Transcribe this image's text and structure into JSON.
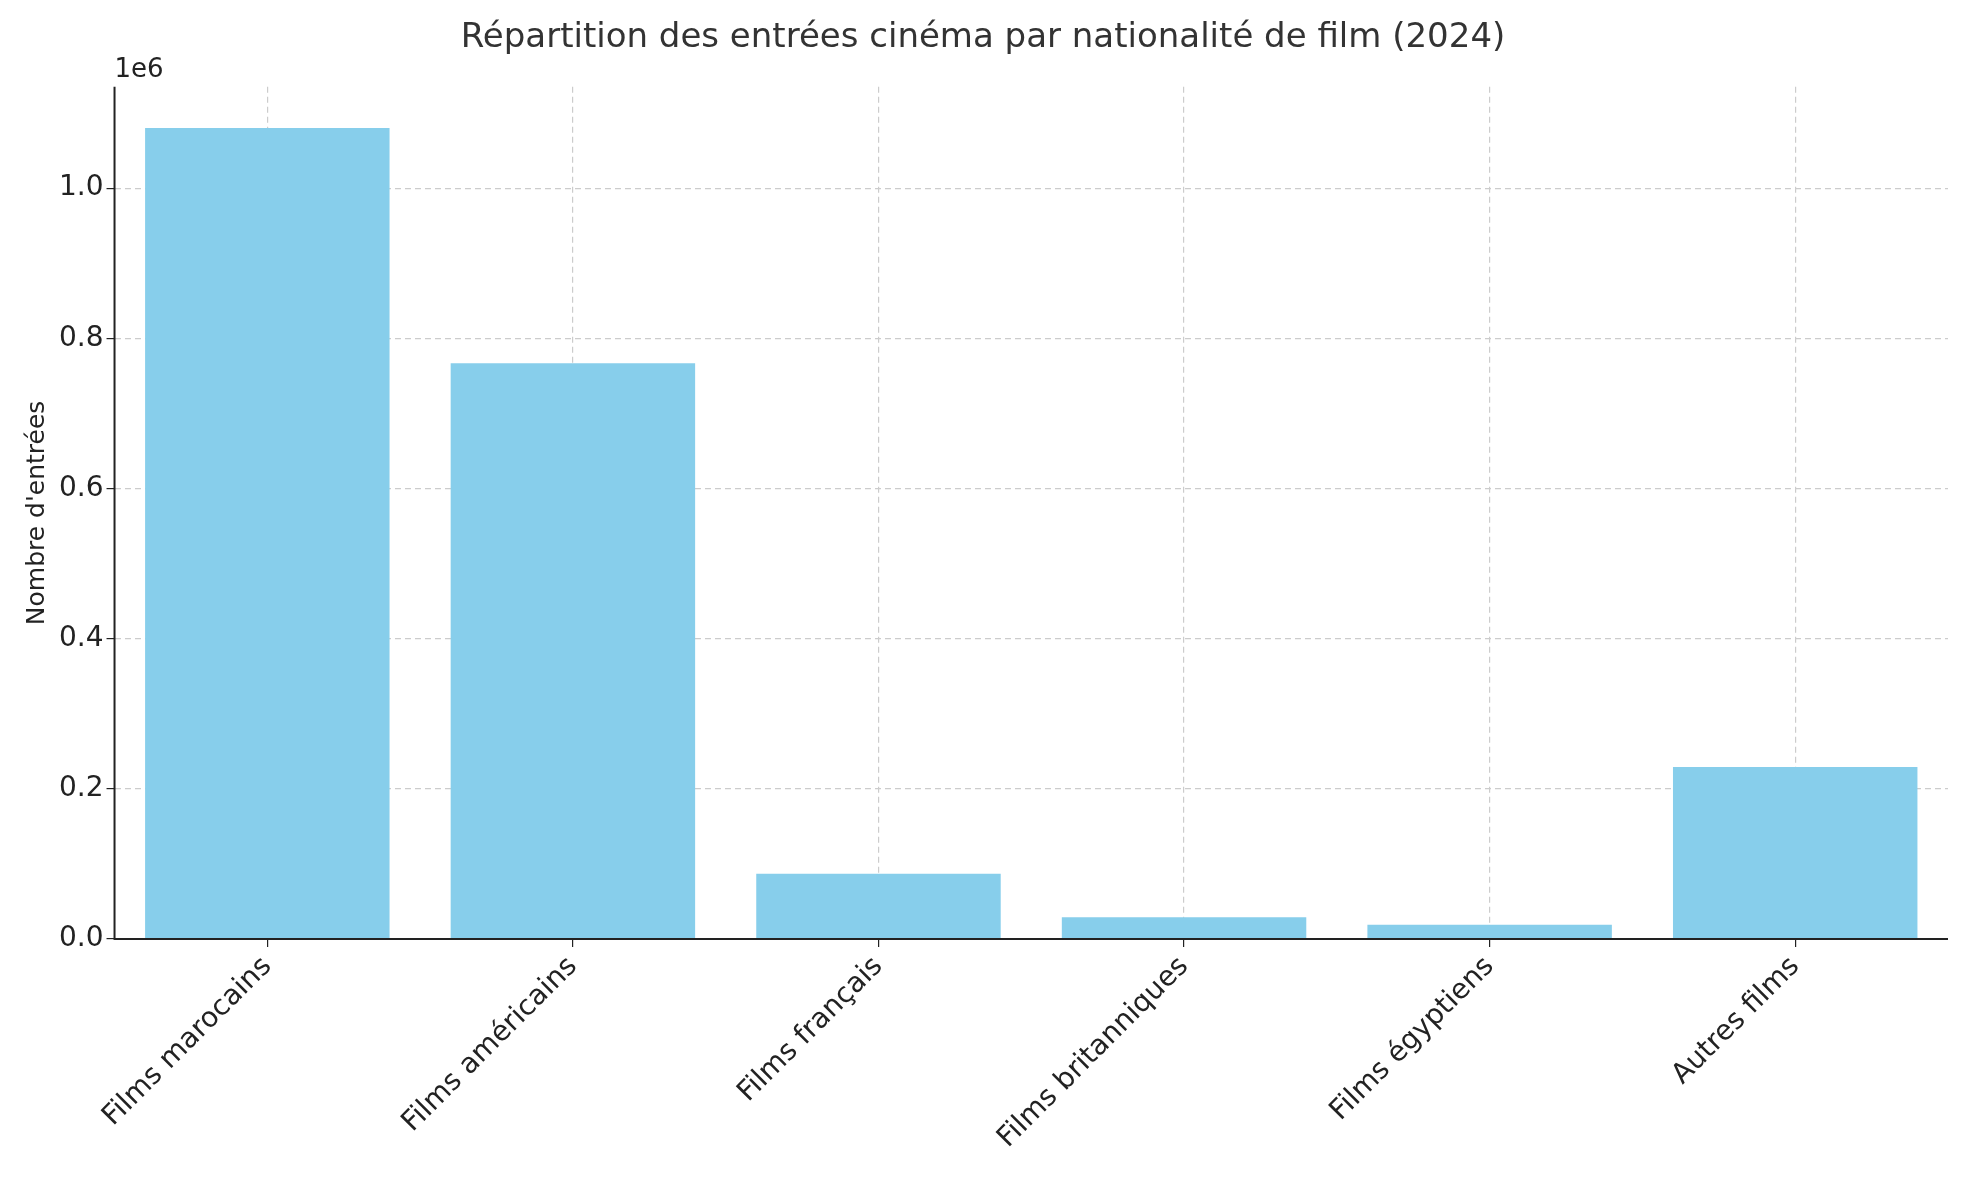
{
  "chart_data": {
    "type": "bar",
    "title": "Répartition des entrées cinéma par nationalité de film (2024)",
    "ylabel": "Nombre d'entrées",
    "categories": [
      "Films marocains",
      "Films américains",
      "Films français",
      "Films britanniques",
      "Films égyptiens",
      "Autres films"
    ],
    "values": [
      1.08,
      0.767,
      0.087,
      0.029,
      0.019,
      0.229
    ],
    "color": "#87ceeb",
    "ylim": [
      0,
      1.135
    ],
    "yticks": [
      {
        "value": 0,
        "label": "0.0"
      },
      0.2,
      0.4,
      0.6,
      0.8,
      {
        "value": 1,
        "label": "1.0"
      }
    ],
    "annotations": [
      "1e6"
    ],
    "grid": true,
    "legend": false
  }
}
